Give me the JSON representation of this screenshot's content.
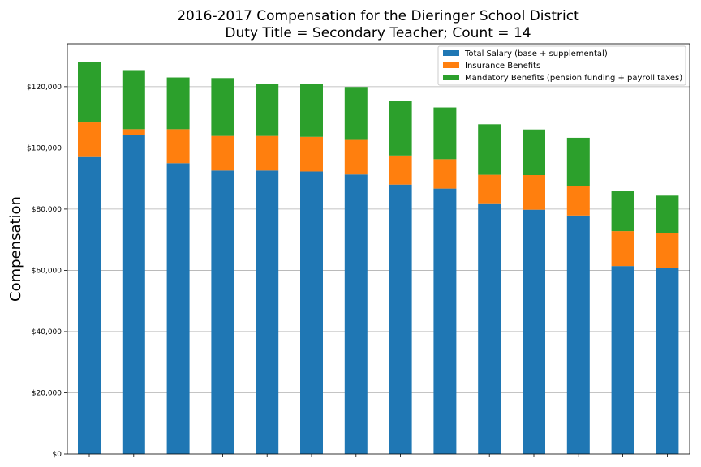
{
  "chart_data": {
    "type": "bar",
    "stacked": true,
    "title": "2016-2017 Compensation for the Dieringer School District",
    "subtitle": "Duty Title = Secondary Teacher; Count = 14",
    "xlabel": "",
    "ylabel": "Compensation",
    "ylim": [
      0,
      134000
    ],
    "yticks": [
      0,
      20000,
      40000,
      60000,
      80000,
      100000,
      120000
    ],
    "ytick_labels": [
      "$0",
      "$20,000",
      "$40,000",
      "$60,000",
      "$80,000",
      "$100,000",
      "$120,000"
    ],
    "grid": "y",
    "legend_position": "top-right",
    "categories": [
      "",
      "",
      "",
      "",
      "",
      "",
      "",
      "",
      "",
      "",
      "",
      "",
      "",
      ""
    ],
    "series": [
      {
        "name": "Total Salary (base + supplemental)",
        "color": "#1f77b4",
        "values": [
          97000,
          104200,
          95000,
          92600,
          92600,
          92300,
          91300,
          88000,
          86700,
          81900,
          79800,
          77900,
          61400,
          60900
        ]
      },
      {
        "name": "Insurance Benefits",
        "color": "#ff7f0e",
        "values": [
          11300,
          1900,
          11100,
          11300,
          11300,
          11300,
          11300,
          9500,
          9600,
          9300,
          11300,
          9700,
          11400,
          11200
        ]
      },
      {
        "name": "Mandatory Benefits (pension funding + payroll taxes)",
        "color": "#2ca02c",
        "values": [
          19800,
          19300,
          16900,
          18900,
          16900,
          17200,
          17300,
          17700,
          16900,
          16500,
          14900,
          15700,
          13000,
          12300
        ]
      }
    ]
  }
}
